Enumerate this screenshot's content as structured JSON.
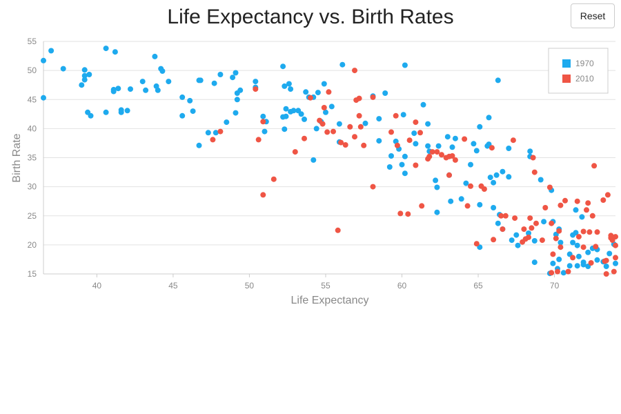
{
  "reset_label": "Reset",
  "chart_data": {
    "type": "scatter",
    "title": "Life Expectancy vs. Birth Rates",
    "xlabel": "Life Expectancy",
    "ylabel": "Birth Rate",
    "xlim": [
      36.5,
      74
    ],
    "ylim": [
      15,
      55
    ],
    "xticks": [
      40,
      45,
      50,
      55,
      60,
      65,
      70
    ],
    "yticks": [
      15,
      20,
      25,
      30,
      35,
      40,
      45,
      50,
      55
    ],
    "grid": "horizontal",
    "legend_position": "top-right",
    "series": [
      {
        "name": "1970",
        "color": "#1eaaee",
        "points": [
          [
            36.5,
            45.3
          ],
          [
            36.5,
            51.7
          ],
          [
            37.0,
            53.4
          ],
          [
            37.8,
            50.3
          ],
          [
            39.2,
            50.1
          ],
          [
            39.2,
            49.1
          ],
          [
            39.2,
            48.4
          ],
          [
            39.5,
            49.3
          ],
          [
            39.0,
            47.5
          ],
          [
            39.4,
            42.8
          ],
          [
            39.6,
            42.2
          ],
          [
            40.6,
            42.8
          ],
          [
            40.6,
            53.8
          ],
          [
            41.1,
            46.4
          ],
          [
            41.1,
            46.7
          ],
          [
            41.2,
            53.2
          ],
          [
            41.4,
            46.9
          ],
          [
            41.6,
            43.2
          ],
          [
            41.6,
            42.8
          ],
          [
            42.0,
            43.1
          ],
          [
            42.2,
            46.8
          ],
          [
            43.0,
            48.1
          ],
          [
            43.2,
            46.6
          ],
          [
            43.8,
            52.4
          ],
          [
            43.9,
            47.3
          ],
          [
            44.0,
            46.6
          ],
          [
            44.2,
            50.3
          ],
          [
            44.3,
            49.9
          ],
          [
            44.7,
            48.1
          ],
          [
            45.6,
            45.4
          ],
          [
            45.6,
            42.2
          ],
          [
            46.1,
            44.8
          ],
          [
            46.3,
            43.0
          ],
          [
            46.7,
            48.3
          ],
          [
            46.8,
            48.3
          ],
          [
            47.3,
            39.3
          ],
          [
            46.7,
            37.1
          ],
          [
            47.7,
            47.8
          ],
          [
            47.8,
            39.3
          ],
          [
            48.1,
            49.3
          ],
          [
            48.5,
            41.1
          ],
          [
            48.9,
            48.8
          ],
          [
            49.1,
            49.6
          ],
          [
            49.2,
            46.1
          ],
          [
            49.2,
            45.0
          ],
          [
            49.4,
            46.6
          ],
          [
            49.1,
            42.7
          ],
          [
            50.4,
            47.1
          ],
          [
            50.4,
            48.1
          ],
          [
            50.9,
            42.1
          ],
          [
            51.1,
            41.2
          ],
          [
            51.0,
            39.5
          ],
          [
            52.2,
            50.7
          ],
          [
            52.3,
            47.3
          ],
          [
            52.6,
            47.7
          ],
          [
            52.7,
            46.8
          ],
          [
            52.2,
            42.0
          ],
          [
            52.4,
            42.1
          ],
          [
            52.4,
            43.4
          ],
          [
            52.7,
            42.9
          ],
          [
            52.3,
            39.9
          ],
          [
            52.9,
            43.1
          ],
          [
            53.2,
            43.1
          ],
          [
            53.4,
            42.5
          ],
          [
            53.6,
            41.6
          ],
          [
            53.7,
            46.3
          ],
          [
            53.9,
            45.4
          ],
          [
            54.2,
            45.4
          ],
          [
            54.2,
            34.6
          ],
          [
            54.5,
            46.2
          ],
          [
            54.4,
            40.0
          ],
          [
            54.7,
            41.2
          ],
          [
            54.9,
            47.7
          ],
          [
            55.0,
            42.8
          ],
          [
            55.4,
            43.8
          ],
          [
            55.9,
            40.8
          ],
          [
            55.9,
            37.7
          ],
          [
            56.1,
            51.0
          ],
          [
            58.1,
            45.6
          ],
          [
            58.5,
            41.7
          ],
          [
            58.9,
            46.1
          ],
          [
            57.6,
            40.9
          ],
          [
            58.5,
            37.9
          ],
          [
            59.3,
            35.3
          ],
          [
            59.2,
            33.4
          ],
          [
            59.6,
            37.8
          ],
          [
            59.8,
            36.5
          ],
          [
            60.0,
            33.8
          ],
          [
            60.2,
            35.2
          ],
          [
            60.2,
            32.3
          ],
          [
            60.2,
            50.9
          ],
          [
            60.1,
            42.4
          ],
          [
            60.8,
            39.2
          ],
          [
            60.9,
            37.4
          ],
          [
            61.4,
            44.1
          ],
          [
            61.7,
            40.8
          ],
          [
            61.7,
            37.0
          ],
          [
            61.8,
            36.1
          ],
          [
            62.2,
            31.1
          ],
          [
            62.3,
            29.9
          ],
          [
            62.3,
            25.6
          ],
          [
            62.4,
            37.0
          ],
          [
            63.0,
            38.6
          ],
          [
            63.1,
            32.0
          ],
          [
            63.2,
            27.5
          ],
          [
            63.3,
            36.8
          ],
          [
            63.5,
            38.3
          ],
          [
            63.9,
            27.9
          ],
          [
            64.2,
            30.6
          ],
          [
            64.5,
            33.8
          ],
          [
            64.7,
            37.4
          ],
          [
            64.9,
            36.2
          ],
          [
            65.1,
            40.3
          ],
          [
            65.1,
            26.9
          ],
          [
            65.1,
            19.6
          ],
          [
            65.6,
            37.0
          ],
          [
            65.7,
            41.9
          ],
          [
            65.7,
            37.3
          ],
          [
            65.8,
            31.6
          ],
          [
            66.0,
            30.7
          ],
          [
            66.0,
            26.4
          ],
          [
            66.2,
            32.0
          ],
          [
            66.3,
            48.3
          ],
          [
            66.4,
            25.2
          ],
          [
            66.3,
            23.7
          ],
          [
            66.6,
            32.6
          ],
          [
            66.6,
            22.7
          ],
          [
            67.0,
            36.6
          ],
          [
            67.0,
            31.7
          ],
          [
            67.2,
            20.8
          ],
          [
            67.6,
            19.9
          ],
          [
            67.5,
            21.7
          ],
          [
            68.3,
            22.0
          ],
          [
            68.4,
            35.2
          ],
          [
            68.4,
            36.1
          ],
          [
            68.7,
            20.7
          ],
          [
            68.7,
            17.0
          ],
          [
            69.1,
            31.2
          ],
          [
            69.3,
            24.0
          ],
          [
            69.7,
            15.1
          ],
          [
            69.8,
            29.4
          ],
          [
            69.9,
            24.0
          ],
          [
            69.9,
            16.8
          ],
          [
            70.1,
            21.8
          ],
          [
            70.2,
            15.9
          ],
          [
            70.3,
            17.5
          ],
          [
            70.3,
            22.7
          ],
          [
            70.4,
            20.4
          ],
          [
            70.6,
            15.2
          ],
          [
            71.0,
            18.4
          ],
          [
            71.0,
            16.4
          ],
          [
            71.2,
            21.7
          ],
          [
            71.2,
            20.4
          ],
          [
            71.4,
            26.0
          ],
          [
            71.4,
            22.1
          ],
          [
            71.5,
            19.9
          ],
          [
            71.6,
            18.0
          ],
          [
            71.5,
            16.4
          ],
          [
            71.8,
            24.8
          ],
          [
            71.9,
            17.0
          ],
          [
            71.9,
            16.6
          ],
          [
            72.2,
            16.3
          ],
          [
            72.2,
            18.7
          ],
          [
            72.5,
            19.4
          ],
          [
            72.8,
            17.4
          ],
          [
            72.8,
            19.2
          ],
          [
            73.2,
            17.1
          ],
          [
            73.4,
            16.3
          ],
          [
            73.6,
            18.5
          ],
          [
            73.9,
            20.1
          ],
          [
            74.0,
            16.8
          ]
        ]
      },
      {
        "name": "2010",
        "color": "#ef5545",
        "points": [
          [
            47.6,
            38.1
          ],
          [
            48.1,
            39.5
          ],
          [
            50.4,
            46.8
          ],
          [
            50.6,
            38.1
          ],
          [
            50.9,
            41.2
          ],
          [
            50.9,
            28.6
          ],
          [
            51.6,
            31.3
          ],
          [
            53.0,
            36.0
          ],
          [
            53.6,
            38.3
          ],
          [
            54.0,
            45.3
          ],
          [
            54.6,
            41.4
          ],
          [
            54.9,
            43.6
          ],
          [
            54.8,
            40.8
          ],
          [
            55.1,
            39.4
          ],
          [
            55.5,
            39.5
          ],
          [
            55.2,
            46.3
          ],
          [
            55.8,
            22.5
          ],
          [
            56.0,
            37.6
          ],
          [
            56.3,
            37.2
          ],
          [
            56.6,
            40.3
          ],
          [
            56.9,
            38.6
          ],
          [
            56.9,
            50.0
          ],
          [
            57.0,
            44.9
          ],
          [
            57.2,
            42.2
          ],
          [
            57.2,
            45.2
          ],
          [
            57.3,
            40.3
          ],
          [
            57.5,
            37.1
          ],
          [
            58.1,
            30.0
          ],
          [
            58.1,
            45.4
          ],
          [
            59.3,
            39.4
          ],
          [
            59.6,
            42.2
          ],
          [
            59.7,
            37.1
          ],
          [
            59.9,
            25.4
          ],
          [
            60.4,
            25.3
          ],
          [
            60.5,
            38.0
          ],
          [
            60.9,
            41.1
          ],
          [
            60.9,
            33.7
          ],
          [
            61.2,
            39.3
          ],
          [
            61.3,
            26.7
          ],
          [
            61.7,
            34.8
          ],
          [
            61.8,
            35.2
          ],
          [
            62.0,
            36.0
          ],
          [
            62.3,
            36.0
          ],
          [
            62.6,
            35.5
          ],
          [
            62.9,
            35.0
          ],
          [
            63.1,
            32.0
          ],
          [
            63.1,
            35.2
          ],
          [
            63.3,
            35.3
          ],
          [
            63.5,
            34.6
          ],
          [
            64.1,
            38.2
          ],
          [
            64.3,
            26.7
          ],
          [
            64.5,
            30.1
          ],
          [
            64.9,
            20.2
          ],
          [
            65.2,
            30.1
          ],
          [
            65.4,
            29.6
          ],
          [
            65.9,
            36.7
          ],
          [
            66.0,
            20.9
          ],
          [
            66.5,
            25.0
          ],
          [
            66.8,
            25.0
          ],
          [
            66.6,
            22.7
          ],
          [
            67.3,
            38.0
          ],
          [
            67.4,
            24.6
          ],
          [
            67.9,
            20.5
          ],
          [
            68.0,
            22.7
          ],
          [
            68.1,
            21.0
          ],
          [
            68.3,
            21.3
          ],
          [
            68.4,
            24.6
          ],
          [
            68.5,
            22.9
          ],
          [
            68.6,
            35.0
          ],
          [
            68.7,
            32.5
          ],
          [
            68.8,
            23.7
          ],
          [
            69.2,
            20.8
          ],
          [
            69.4,
            26.4
          ],
          [
            69.7,
            29.9
          ],
          [
            69.8,
            23.7
          ],
          [
            69.9,
            18.4
          ],
          [
            69.8,
            15.2
          ],
          [
            70.1,
            21.1
          ],
          [
            70.2,
            15.4
          ],
          [
            70.3,
            22.4
          ],
          [
            70.4,
            26.8
          ],
          [
            70.4,
            19.6
          ],
          [
            70.7,
            27.6
          ],
          [
            70.9,
            15.4
          ],
          [
            71.2,
            17.8
          ],
          [
            71.5,
            27.5
          ],
          [
            71.6,
            21.4
          ],
          [
            71.9,
            22.3
          ],
          [
            71.9,
            19.6
          ],
          [
            72.1,
            26.0
          ],
          [
            72.2,
            27.2
          ],
          [
            72.3,
            22.2
          ],
          [
            72.4,
            16.9
          ],
          [
            72.5,
            25.0
          ],
          [
            72.6,
            33.6
          ],
          [
            72.7,
            19.7
          ],
          [
            72.8,
            22.2
          ],
          [
            73.2,
            27.7
          ],
          [
            73.3,
            17.2
          ],
          [
            73.4,
            17.3
          ],
          [
            73.4,
            15.0
          ],
          [
            73.5,
            28.6
          ],
          [
            73.7,
            21.6
          ],
          [
            73.8,
            20.8
          ],
          [
            73.7,
            21.2
          ],
          [
            73.9,
            15.4
          ],
          [
            74.0,
            17.8
          ],
          [
            74.0,
            21.4
          ],
          [
            74.0,
            19.9
          ]
        ]
      }
    ]
  }
}
